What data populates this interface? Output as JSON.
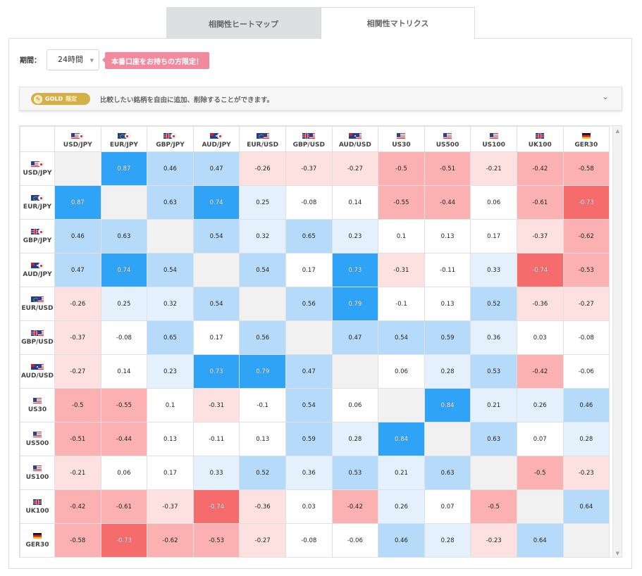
{
  "tabs": [
    {
      "label": "相関性ヒートマップ",
      "active": false
    },
    {
      "label": "相関性マトリクス",
      "active": true
    }
  ],
  "controls": {
    "period_label": "期間：",
    "period_value": "24時間",
    "promo_label": "本番口座をお持ちの方限定！"
  },
  "gold": {
    "badge_label": "GOLD",
    "limited_label": "限定",
    "message": "比較したい銘柄を自由に追加、削除することができます。"
  },
  "matrix": {
    "symbols": [
      "USD/JPY",
      "EUR/JPY",
      "GBP/JPY",
      "AUD/JPY",
      "EUR/USD",
      "GBP/USD",
      "AUD/USD",
      "US30",
      "US500",
      "US100",
      "UK100",
      "GER30"
    ],
    "flags": [
      [
        "usd",
        "jpy"
      ],
      [
        "eur",
        "jpy"
      ],
      [
        "gbp",
        "jpy"
      ],
      [
        "aud",
        "jpy"
      ],
      [
        "eur",
        "usd"
      ],
      [
        "gbp",
        "usd"
      ],
      [
        "aud",
        "usd"
      ],
      [
        "usd"
      ],
      [
        "usd"
      ],
      [
        "usd"
      ],
      [
        "gbp"
      ],
      [
        "ger"
      ]
    ],
    "values": [
      [
        null,
        0.87,
        0.46,
        0.47,
        -0.26,
        -0.37,
        -0.27,
        -0.5,
        -0.51,
        -0.21,
        -0.42,
        -0.58
      ],
      [
        0.87,
        null,
        0.63,
        0.74,
        0.25,
        -0.08,
        0.14,
        -0.55,
        -0.44,
        0.06,
        -0.61,
        -0.73
      ],
      [
        0.46,
        0.63,
        null,
        0.54,
        0.32,
        0.65,
        0.23,
        0.1,
        0.13,
        0.17,
        -0.37,
        -0.62
      ],
      [
        0.47,
        0.74,
        0.54,
        null,
        0.54,
        0.17,
        0.73,
        -0.31,
        -0.11,
        0.33,
        -0.74,
        -0.53
      ],
      [
        -0.26,
        0.25,
        0.32,
        0.54,
        null,
        0.56,
        0.79,
        -0.1,
        0.13,
        0.52,
        -0.36,
        -0.27
      ],
      [
        -0.37,
        -0.08,
        0.65,
        0.17,
        0.56,
        null,
        0.47,
        0.54,
        0.59,
        0.36,
        0.03,
        -0.08
      ],
      [
        -0.27,
        0.14,
        0.23,
        0.73,
        0.79,
        0.47,
        null,
        0.06,
        0.28,
        0.53,
        -0.42,
        -0.06
      ],
      [
        -0.5,
        -0.55,
        0.1,
        -0.31,
        -0.1,
        0.54,
        0.06,
        null,
        0.84,
        0.21,
        0.26,
        0.46
      ],
      [
        -0.51,
        -0.44,
        0.13,
        -0.11,
        0.13,
        0.59,
        0.28,
        0.84,
        null,
        0.63,
        0.07,
        0.28
      ],
      [
        -0.21,
        0.06,
        0.17,
        0.33,
        0.52,
        0.36,
        0.53,
        0.21,
        0.63,
        null,
        -0.5,
        -0.23
      ],
      [
        -0.42,
        -0.61,
        -0.37,
        -0.74,
        -0.36,
        0.03,
        -0.42,
        0.26,
        0.07,
        -0.5,
        null,
        0.64
      ],
      [
        -0.58,
        -0.73,
        -0.62,
        -0.53,
        -0.27,
        -0.08,
        -0.06,
        0.46,
        0.28,
        -0.23,
        0.64,
        null
      ]
    ]
  },
  "colors": {
    "strong_positive": "#2fa3f5",
    "positive": "#b5dafa",
    "weak_positive": "#e4f1fc",
    "neutral": "#ffffff",
    "weak_negative": "#fde0e0",
    "negative": "#fbb1b1",
    "strong_negative": "#f66b6b",
    "self": "#f1f1f1"
  }
}
